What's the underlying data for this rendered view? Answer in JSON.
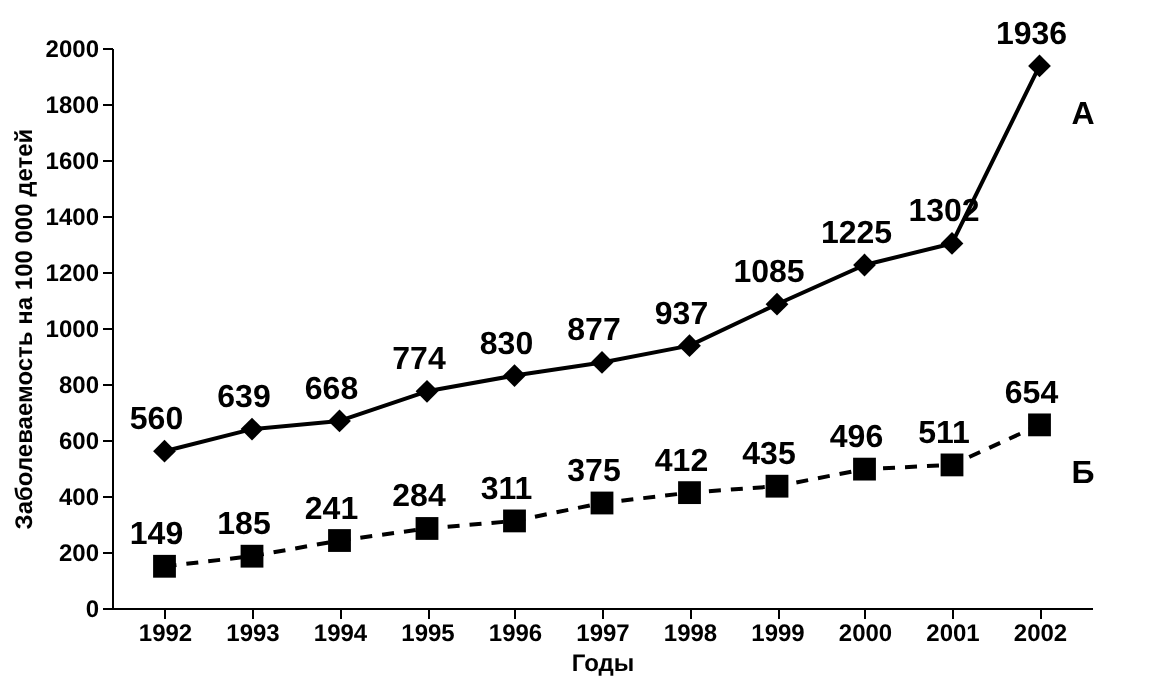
{
  "chart_data": {
    "type": "line",
    "xlabel": "Годы",
    "ylabel": "Заболеваемость на 100 000 детей",
    "categories": [
      "1992",
      "1993",
      "1994",
      "1995",
      "1996",
      "1997",
      "1998",
      "1999",
      "2000",
      "2001",
      "2002"
    ],
    "series": [
      {
        "name": "А",
        "color": "#000000",
        "marker": "diamond",
        "line_style": "solid",
        "values": [
          560,
          639,
          668,
          774,
          830,
          877,
          937,
          1085,
          1225,
          1302,
          1936
        ]
      },
      {
        "name": "Б",
        "color": "#000000",
        "marker": "square",
        "line_style": "dashed",
        "values": [
          149,
          185,
          241,
          284,
          311,
          375,
          412,
          435,
          496,
          511,
          654
        ]
      }
    ],
    "ylim": [
      0,
      2000
    ],
    "yticks": [
      0,
      200,
      400,
      600,
      800,
      1000,
      1200,
      1400,
      1600,
      1800,
      2000
    ],
    "data_labels": true
  }
}
